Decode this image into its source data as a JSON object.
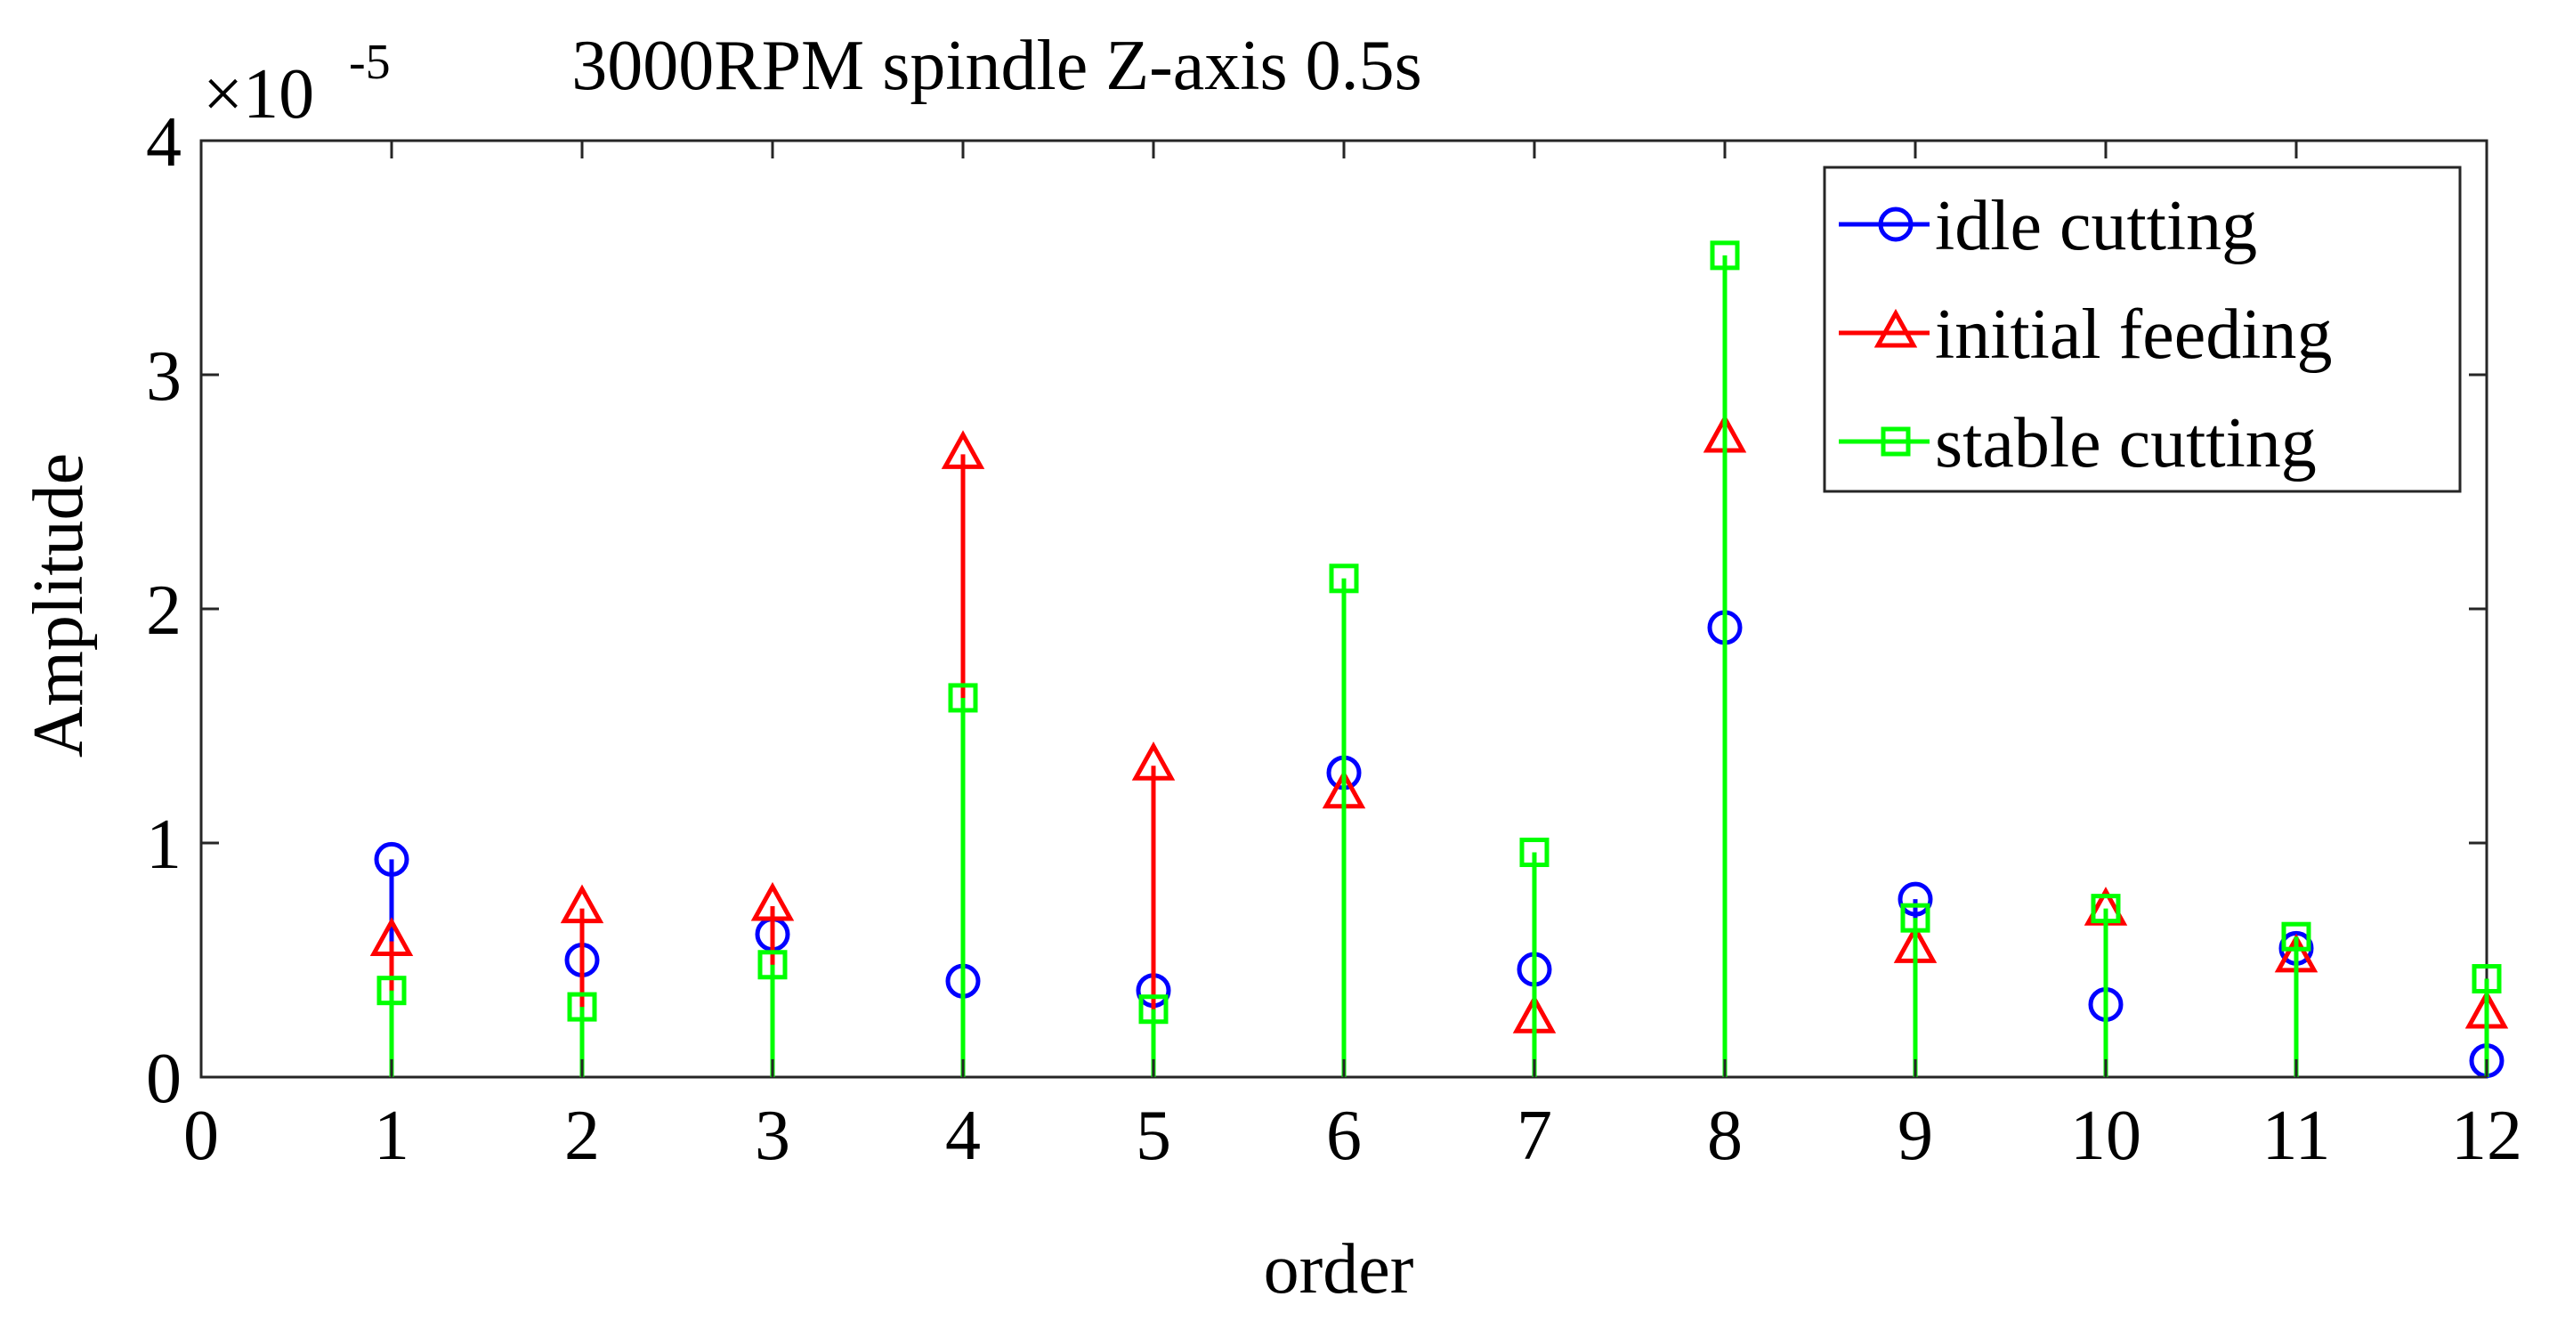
{
  "chart_data": {
    "type": "stem",
    "title": "3000RPM spindle Z-axis 0.5s",
    "xlabel": "order",
    "ylabel": "Amplitude",
    "exponent_label": {
      "base": "×10",
      "exponent": "-5"
    },
    "xlim": [
      0,
      12
    ],
    "ylim": [
      0,
      4
    ],
    "y_scale": 1e-05,
    "x_ticks": [
      "0",
      "1",
      "2",
      "3",
      "4",
      "5",
      "6",
      "7",
      "8",
      "9",
      "10",
      "11",
      "12"
    ],
    "y_ticks": [
      "0",
      "1",
      "2",
      "3",
      "4"
    ],
    "x": [
      1,
      2,
      3,
      4,
      5,
      6,
      7,
      8,
      9,
      10,
      11,
      12
    ],
    "series": [
      {
        "name": "idle cutting",
        "color": "#0000ff",
        "marker": "circle",
        "values": [
          0.93,
          0.5,
          0.61,
          0.41,
          0.37,
          1.3,
          0.46,
          1.92,
          0.76,
          0.31,
          0.55,
          0.07
        ]
      },
      {
        "name": "initial feeding",
        "color": "#ff0000",
        "marker": "triangle",
        "values": [
          0.58,
          0.72,
          0.73,
          2.66,
          1.33,
          1.21,
          0.25,
          2.73,
          0.55,
          0.71,
          0.51,
          0.27
        ]
      },
      {
        "name": "stable cutting",
        "color": "#00ff00",
        "marker": "square",
        "values": [
          0.37,
          0.3,
          0.48,
          1.62,
          0.29,
          2.13,
          0.96,
          3.51,
          0.68,
          0.72,
          0.6,
          0.42
        ]
      }
    ],
    "legend": {
      "position": "top-right"
    },
    "grid": false
  }
}
